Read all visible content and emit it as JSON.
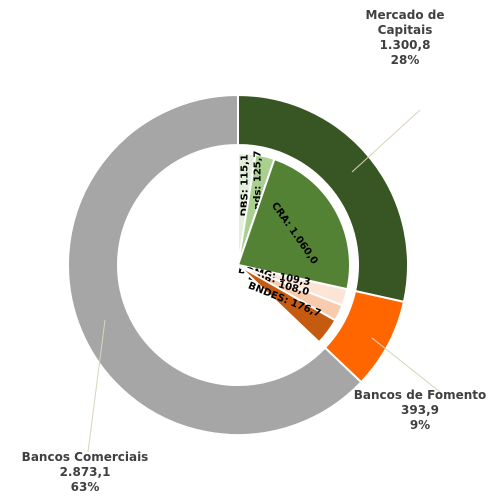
{
  "chart_data": {
    "type": "sunburst",
    "categories": [
      "Mercado de Capitais",
      "Bancos de Fomento",
      "Bancos Comerciais"
    ],
    "values": [
      1300.8,
      393.9,
      2873.1
    ],
    "value_labels": [
      "1.300,8",
      "393,9",
      "2.873,1"
    ],
    "percent_labels": [
      "28%",
      "9%",
      "63%"
    ],
    "colors": [
      "#375623",
      "#ff6600",
      "#a6a6a6"
    ],
    "inner": {
      "labels": [
        "DBS: 115,1",
        "Bonds: 125,7",
        "CRA: 1.060,0",
        "BDMG: 109,3",
        "BNB: 108,0",
        "BNDES: 176,7"
      ],
      "values": [
        115.1,
        125.7,
        1060.0,
        109.3,
        108.0,
        176.7
      ],
      "colors": [
        "#e2efda",
        "#a9d08e",
        "#548235",
        "#fce4d6",
        "#f8cbad",
        "#c55a11"
      ]
    }
  }
}
